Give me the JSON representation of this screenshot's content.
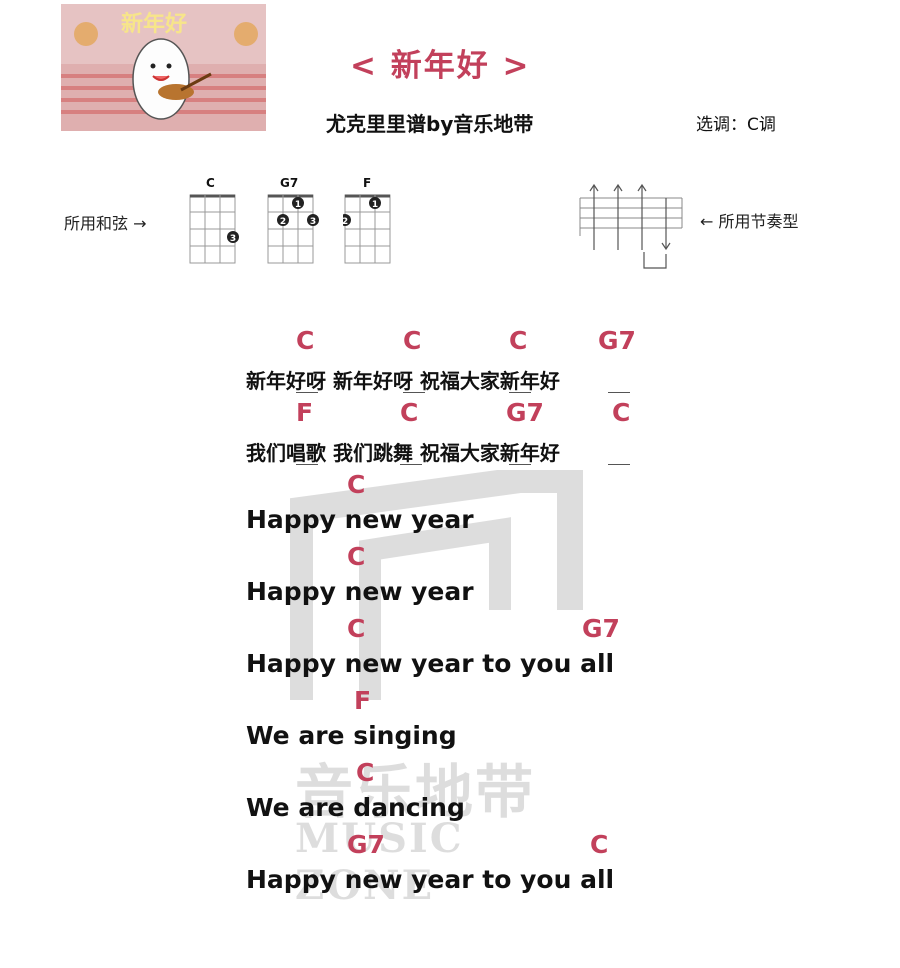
{
  "header": {
    "title": "< 新年好 >",
    "subtitle": "尤克里里谱by音乐地带",
    "key": "选调：C调",
    "thumbnail_text": "新年好"
  },
  "chords_section": {
    "label": "所用和弦 →",
    "chords": [
      {
        "name": "C"
      },
      {
        "name": "G7"
      },
      {
        "name": "F"
      }
    ]
  },
  "rhythm_section": {
    "label": "← 所用节奏型"
  },
  "lines": [
    {
      "chords": [
        "C",
        "C",
        "C",
        "G7"
      ],
      "lyric": "新年好呀 新年好呀 祝福大家新年好"
    },
    {
      "chords": [
        "F",
        "C",
        "G7",
        "C"
      ],
      "lyric": "我们唱歌 我们跳舞 祝福大家新年好"
    },
    {
      "chords": [
        "C"
      ],
      "lyric": "Happy new year"
    },
    {
      "chords": [
        "C"
      ],
      "lyric": "Happy new year"
    },
    {
      "chords": [
        "C",
        "G7"
      ],
      "lyric": "Happy new year to you all"
    },
    {
      "chords": [
        "F"
      ],
      "lyric": "We are singing"
    },
    {
      "chords": [
        "C"
      ],
      "lyric": "We are dancing"
    },
    {
      "chords": [
        "G7",
        "C"
      ],
      "lyric": "Happy new year to you all"
    }
  ],
  "watermark": {
    "cn": "音乐地带",
    "en": "MUSIC ZONE"
  },
  "colors": {
    "accent": "#c2405b",
    "text": "#111111"
  }
}
